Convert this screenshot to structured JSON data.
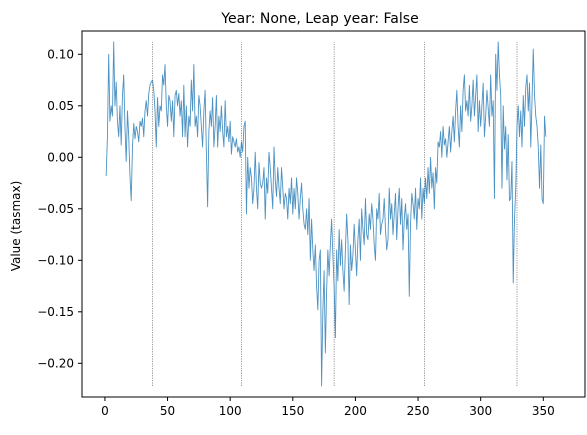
{
  "chart_data": {
    "type": "line",
    "title": "Year: None, Leap year: False",
    "xlabel": "",
    "ylabel": "Value (tasmax)",
    "xlim": [
      -18.3,
      383.3
    ],
    "ylim": [
      -0.2327,
      0.1226
    ],
    "xticks": [
      0,
      50,
      100,
      150,
      200,
      250,
      300,
      350
    ],
    "yticks": [
      -0.2,
      -0.15,
      -0.1,
      -0.05,
      0.0,
      0.05,
      0.1
    ],
    "ytick_labels": [
      "−0.20",
      "−0.15",
      "−0.10",
      "−0.05",
      "0.00",
      "0.05",
      "0.10"
    ],
    "grid": false,
    "line_color": "#1f77b4",
    "vertical_markers": [
      {
        "x": 38,
        "ymin": -0.222,
        "ymax": 0.112
      },
      {
        "x": 109,
        "ymin": -0.222,
        "ymax": 0.112
      },
      {
        "x": 183,
        "ymin": -0.222,
        "ymax": 0.112
      },
      {
        "x": 255,
        "ymin": -0.222,
        "ymax": 0.112
      },
      {
        "x": 329,
        "ymin": -0.222,
        "ymax": 0.112
      }
    ],
    "series": [
      {
        "x_start": 1,
        "x_step": 1,
        "values": [
          -0.018,
          0.02,
          0.1,
          0.035,
          0.05,
          0.04,
          0.112,
          0.05,
          0.073,
          0.035,
          0.02,
          0.05,
          0.012,
          0.06,
          0.08,
          0.03,
          -0.004,
          0.045,
          0.02,
          -0.018,
          -0.042,
          0.01,
          0.033,
          0.018,
          0.03,
          0.025,
          0.015,
          0.035,
          0.03,
          0.038,
          0.02,
          0.045,
          0.055,
          0.04,
          0.062,
          0.07,
          0.073,
          0.075,
          0.065,
          0.045,
          0.01,
          0.058,
          0.03,
          0.05,
          0.045,
          0.08,
          0.07,
          0.09,
          0.05,
          0.03,
          0.06,
          0.055,
          0.035,
          0.055,
          0.02,
          0.06,
          0.065,
          0.05,
          0.062,
          0.04,
          0.055,
          0.02,
          0.07,
          0.02,
          0.05,
          0.01,
          0.04,
          0.03,
          0.075,
          0.045,
          0.09,
          0.03,
          0.04,
          0.02,
          0.06,
          0.05,
          0.03,
          0.01,
          0.045,
          0.065,
          0.005,
          -0.048,
          0.025,
          0.045,
          0.03,
          0.058,
          0.01,
          0.03,
          0.06,
          0.01,
          0.04,
          0.025,
          0.05,
          0.025,
          0.01,
          0.055,
          0.02,
          0.03,
          0.015,
          0.035,
          0.003,
          0.02,
          0.015,
          0.01,
          0.018,
          0.005,
          0.01,
          0.0,
          0.015,
          0.005,
          0.03,
          0.035,
          -0.055,
          0.0,
          -0.03,
          -0.01,
          -0.02,
          -0.045,
          -0.03,
          0.005,
          -0.03,
          -0.05,
          -0.005,
          -0.025,
          -0.03,
          -0.025,
          -0.01,
          -0.06,
          -0.02,
          -0.035,
          0.005,
          -0.01,
          -0.03,
          -0.05,
          0.01,
          -0.022,
          -0.038,
          -0.01,
          -0.03,
          -0.045,
          -0.01,
          -0.03,
          -0.05,
          -0.035,
          -0.04,
          -0.06,
          -0.03,
          -0.045,
          -0.02,
          -0.055,
          -0.03,
          -0.05,
          -0.02,
          -0.035,
          -0.06,
          -0.04,
          -0.025,
          -0.05,
          -0.065,
          -0.07,
          -0.05,
          -0.075,
          -0.04,
          -0.1,
          -0.06,
          -0.09,
          -0.11,
          -0.085,
          -0.125,
          -0.148,
          -0.1,
          -0.09,
          -0.222,
          -0.15,
          -0.11,
          -0.19,
          -0.13,
          -0.09,
          -0.115,
          -0.085,
          -0.06,
          -0.095,
          -0.125,
          -0.175,
          -0.09,
          -0.12,
          -0.07,
          -0.105,
          -0.08,
          -0.11,
          -0.13,
          -0.09,
          -0.055,
          -0.08,
          -0.143,
          -0.085,
          -0.11,
          -0.095,
          -0.065,
          -0.09,
          -0.115,
          -0.08,
          -0.06,
          -0.1,
          -0.05,
          -0.07,
          -0.085,
          -0.04,
          -0.075,
          -0.08,
          -0.055,
          -0.07,
          -0.045,
          -0.06,
          -0.085,
          -0.1,
          -0.05,
          -0.06,
          -0.035,
          -0.075,
          -0.065,
          -0.06,
          -0.04,
          -0.07,
          -0.09,
          -0.08,
          -0.03,
          -0.06,
          -0.045,
          -0.075,
          -0.055,
          -0.035,
          -0.08,
          -0.05,
          -0.03,
          -0.065,
          -0.04,
          -0.09,
          -0.06,
          -0.045,
          -0.07,
          -0.055,
          -0.135,
          -0.065,
          -0.035,
          -0.045,
          -0.06,
          -0.03,
          -0.07,
          -0.04,
          -0.05,
          -0.02,
          -0.06,
          -0.03,
          -0.045,
          -0.02,
          -0.04,
          -0.01,
          -0.035,
          0.0,
          -0.03,
          -0.015,
          -0.05,
          -0.01,
          -0.025,
          0.015,
          0.01,
          0.025,
          0.0,
          0.03,
          0.012,
          0.018,
          0.0,
          0.015,
          0.03,
          0.005,
          0.025,
          0.04,
          0.015,
          0.045,
          0.065,
          0.03,
          0.01,
          0.05,
          0.025,
          0.065,
          0.08,
          0.045,
          0.055,
          0.04,
          0.07,
          0.035,
          0.05,
          0.075,
          0.04,
          0.06,
          0.08,
          0.025,
          0.055,
          0.03,
          0.05,
          0.072,
          0.02,
          0.04,
          0.065,
          0.048,
          0.03,
          0.08,
          0.04,
          0.055,
          -0.04,
          0.1,
          0.065,
          0.112,
          0.08,
          0.06,
          -0.03,
          0.05,
          0.008,
          0.03,
          -0.022,
          0.022,
          -0.042,
          -0.04,
          -0.004,
          -0.122,
          -0.06,
          -0.03,
          0.03,
          0.05,
          0.02,
          0.045,
          0.01,
          0.06,
          0.03,
          0.068,
          0.08,
          0.045,
          0.072,
          0.01,
          0.055,
          0.105,
          0.06,
          0.04,
          0.03,
          0.01,
          -0.03,
          0.012,
          -0.04,
          -0.045,
          0.04,
          0.02
        ]
      }
    ]
  }
}
